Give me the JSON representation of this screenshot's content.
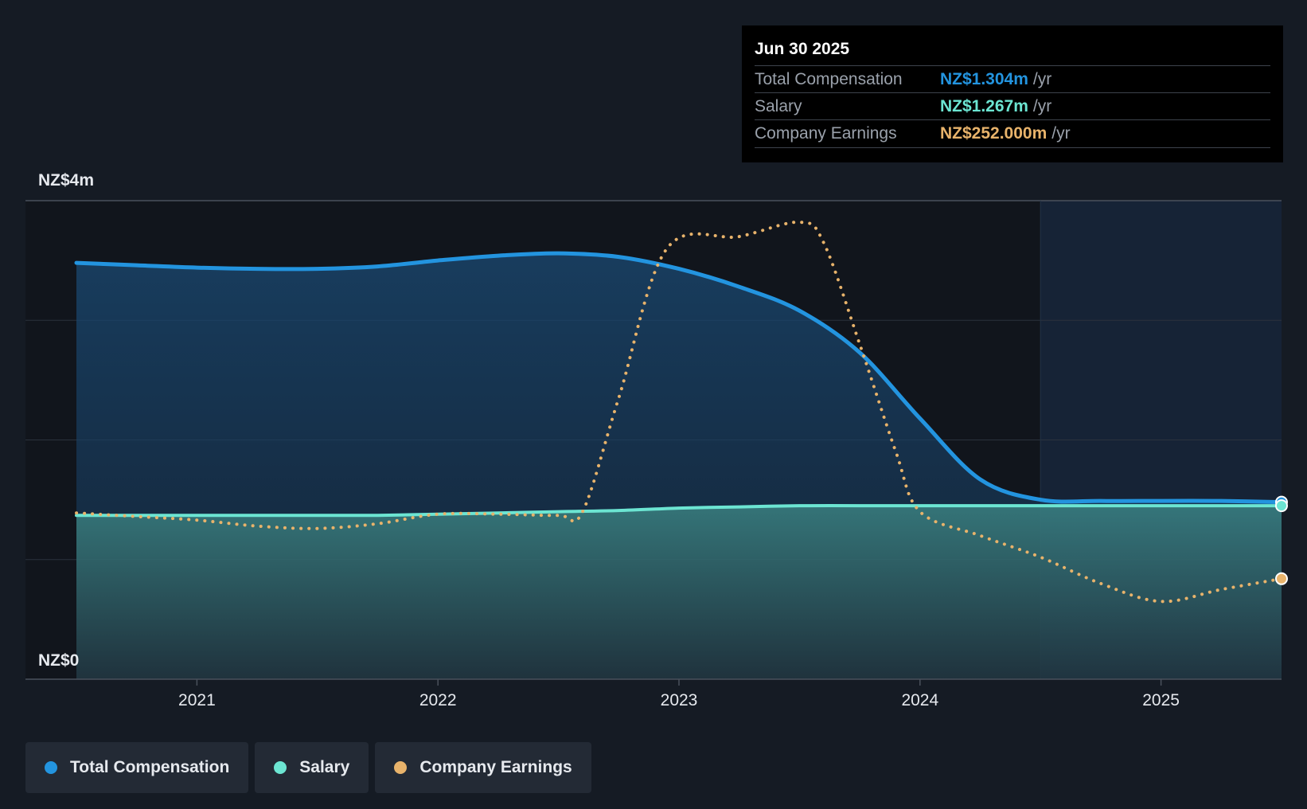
{
  "tooltip": {
    "date": "Jun 30 2025",
    "rows": [
      {
        "label": "Total Compensation",
        "value": "NZ$1.304m",
        "unit": "/yr",
        "color": "#2394df"
      },
      {
        "label": "Salary",
        "value": "NZ$1.267m",
        "unit": "/yr",
        "color": "#6ce5d2"
      },
      {
        "label": "Company Earnings",
        "value": "NZ$252.000m",
        "unit": "/yr",
        "color": "#e8b36b"
      }
    ]
  },
  "legend": [
    {
      "label": "Total Compensation",
      "color": "#2394df"
    },
    {
      "label": "Salary",
      "color": "#6ce5d2"
    },
    {
      "label": "Company Earnings",
      "color": "#e8b36b"
    }
  ],
  "chart_data": {
    "type": "area",
    "x_ticks": [
      2021,
      2022,
      2023,
      2024,
      2025
    ],
    "x_tick_labels": [
      "2021",
      "2022",
      "2023",
      "2024",
      "2025"
    ],
    "xlim": [
      2020.5,
      2025.5
    ],
    "ylim": [
      0,
      4
    ],
    "y_unit": "NZ$m",
    "y_tick_labels": [
      "NZ$4m",
      "NZ$0"
    ],
    "grid": true,
    "legend_position": "bottom-left",
    "highlight_start": 2024.5,
    "series": [
      {
        "name": "Total Compensation",
        "color": "#2394df",
        "style": "solid-area",
        "x": [
          2020.5,
          2020.75,
          2021.0,
          2021.25,
          2021.5,
          2021.75,
          2022.0,
          2022.25,
          2022.5,
          2022.75,
          2023.0,
          2023.25,
          2023.5,
          2023.75,
          2024.0,
          2024.25,
          2024.5,
          2024.75,
          2025.0,
          2025.25,
          2025.5
        ],
        "y": [
          3.48,
          3.46,
          3.44,
          3.43,
          3.43,
          3.45,
          3.5,
          3.54,
          3.56,
          3.53,
          3.43,
          3.28,
          3.08,
          2.73,
          2.18,
          1.67,
          1.5,
          1.49,
          1.49,
          1.49,
          1.48
        ]
      },
      {
        "name": "Salary",
        "color": "#6ce5d2",
        "style": "solid-area",
        "x": [
          2020.5,
          2020.75,
          2021.0,
          2021.25,
          2021.5,
          2021.75,
          2022.0,
          2022.25,
          2022.5,
          2022.75,
          2023.0,
          2023.25,
          2023.5,
          2023.75,
          2024.0,
          2024.25,
          2024.5,
          2024.75,
          2025.0,
          2025.25,
          2025.5
        ],
        "y": [
          1.37,
          1.37,
          1.37,
          1.37,
          1.37,
          1.37,
          1.38,
          1.39,
          1.4,
          1.41,
          1.43,
          1.44,
          1.45,
          1.45,
          1.45,
          1.45,
          1.45,
          1.45,
          1.45,
          1.45,
          1.45
        ]
      },
      {
        "name": "Company Earnings",
        "color": "#e8b36b",
        "style": "dotted",
        "x": [
          2020.5,
          2020.75,
          2021.0,
          2021.25,
          2021.5,
          2021.75,
          2022.0,
          2022.25,
          2022.5,
          2022.6,
          2022.75,
          2022.95,
          2023.25,
          2023.5,
          2023.6,
          2023.75,
          2023.9,
          2024.0,
          2024.25,
          2024.5,
          2024.75,
          2025.0,
          2025.25,
          2025.5
        ],
        "y": [
          1.39,
          1.36,
          1.33,
          1.28,
          1.26,
          1.3,
          1.38,
          1.38,
          1.37,
          1.4,
          2.35,
          3.6,
          3.7,
          3.82,
          3.65,
          2.8,
          1.9,
          1.4,
          1.2,
          1.02,
          0.8,
          0.65,
          0.75,
          0.84
        ]
      }
    ]
  }
}
